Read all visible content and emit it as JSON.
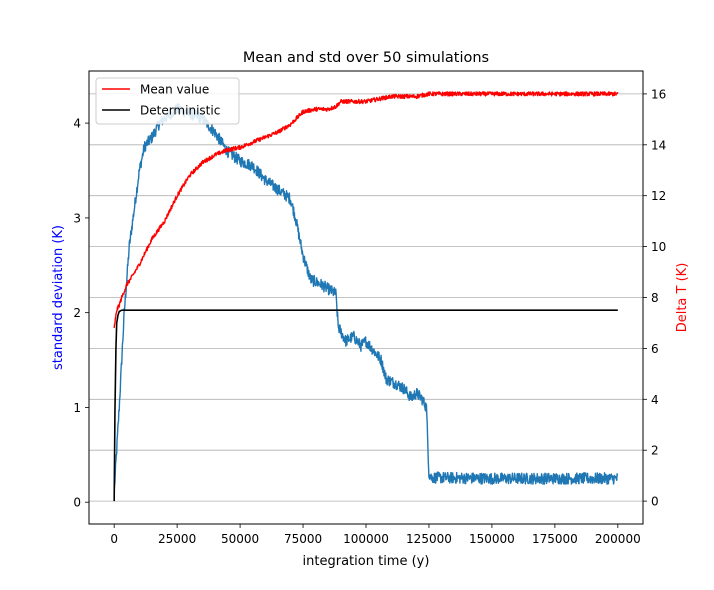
{
  "chart_data": {
    "type": "line",
    "title": "Mean and std over 50 simulations",
    "xlabel": "integration time (y)",
    "ylabel_left": "standard deviation (K)",
    "ylabel_right": "Delta T (K)",
    "ylabel_left_color": "#0000ff",
    "ylabel_right_color": "#ff0000",
    "xlim": [
      -10000,
      210000
    ],
    "ylim_left": [
      -0.23,
      4.55
    ],
    "ylim_right": [
      -0.9,
      16.9
    ],
    "xticks": [
      0,
      25000,
      50000,
      75000,
      100000,
      125000,
      150000,
      175000,
      200000
    ],
    "xtick_labels": [
      "0",
      "25000",
      "50000",
      "75000",
      "100000",
      "125000",
      "150000",
      "175000",
      "200000"
    ],
    "yticks_left": [
      0,
      1,
      2,
      3,
      4
    ],
    "ytick_labels_left": [
      "0",
      "1",
      "2",
      "3",
      "4"
    ],
    "yticks_right": [
      0,
      2,
      4,
      6,
      8,
      10,
      12,
      14,
      16
    ],
    "ytick_labels_right": [
      "0",
      "2",
      "4",
      "6",
      "8",
      "10",
      "12",
      "14",
      "16"
    ],
    "grid": "horizontal lines on right axis",
    "legend_position": "top-left",
    "series": [
      {
        "name": "Mean value",
        "axis": "right",
        "color": "#ff0000",
        "noise": 0.08,
        "x": [
          0,
          1000,
          2000,
          3000,
          5000,
          7000,
          10000,
          15000,
          20000,
          25000,
          30000,
          35000,
          40000,
          45000,
          50000,
          55000,
          60000,
          65000,
          70000,
          75000,
          80000,
          85000,
          88000,
          90000,
          95000,
          100000,
          105000,
          110000,
          115000,
          120000,
          125000,
          130000,
          150000,
          175000,
          200000
        ],
        "y": [
          6.8,
          7.5,
          7.7,
          8.0,
          8.5,
          8.8,
          9.3,
          10.3,
          11.0,
          12.0,
          12.8,
          13.3,
          13.6,
          13.8,
          13.9,
          14.1,
          14.3,
          14.5,
          14.8,
          15.3,
          15.4,
          15.4,
          15.5,
          15.7,
          15.7,
          15.7,
          15.8,
          15.9,
          15.9,
          15.9,
          16.0,
          16.0,
          16.0,
          16.0,
          16.0
        ]
      },
      {
        "name": "Deterministic",
        "axis": "right",
        "color": "#000000",
        "noise": 0,
        "x": [
          0,
          300,
          700,
          1000,
          1500,
          2000,
          3000,
          200000
        ],
        "y": [
          0,
          3.5,
          6.0,
          7.0,
          7.3,
          7.45,
          7.5,
          7.5
        ]
      },
      {
        "name": "",
        "axis": "left",
        "color": "#1f77b4",
        "noise": 0.06,
        "x": [
          0,
          1000,
          2000,
          4000,
          6000,
          8000,
          10000,
          12000,
          15000,
          18000,
          20000,
          25000,
          30000,
          35000,
          40000,
          45000,
          50000,
          55000,
          60000,
          65000,
          70000,
          72000,
          75000,
          78000,
          82000,
          85000,
          88000,
          89000,
          92000,
          95000,
          98000,
          100000,
          103000,
          106000,
          108000,
          112000,
          115000,
          118000,
          120000,
          122000,
          124000,
          125000,
          126000,
          150000,
          175000,
          200000
        ],
        "y": [
          0.1,
          0.55,
          1.0,
          2.0,
          2.7,
          3.1,
          3.5,
          3.75,
          3.85,
          4.0,
          4.05,
          4.15,
          4.1,
          4.05,
          3.9,
          3.7,
          3.6,
          3.55,
          3.4,
          3.3,
          3.2,
          3.0,
          2.6,
          2.35,
          2.3,
          2.25,
          2.2,
          1.85,
          1.7,
          1.75,
          1.65,
          1.7,
          1.6,
          1.5,
          1.3,
          1.25,
          1.2,
          1.1,
          1.15,
          1.1,
          1.0,
          0.3,
          0.26,
          0.25,
          0.25,
          0.25
        ]
      }
    ]
  }
}
